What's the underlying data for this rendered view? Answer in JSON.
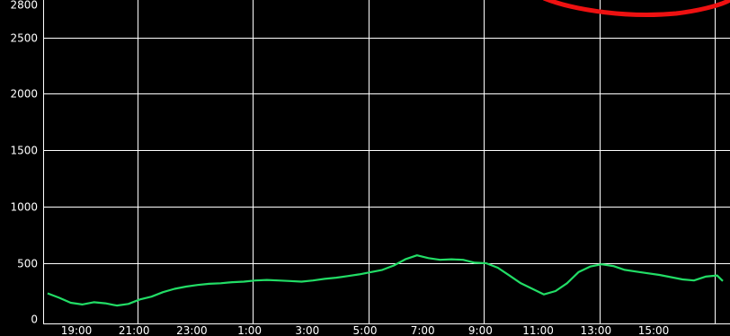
{
  "chart_data": {
    "type": "line",
    "title": "",
    "xlabel": "",
    "ylabel": "",
    "ylim": [
      0,
      2800
    ],
    "y_ticks": [
      0,
      500,
      1000,
      1500,
      2000,
      2500,
      2800
    ],
    "y_tick_labels": [
      "0",
      "500",
      "1000",
      "1500",
      "2000",
      "2500",
      "2800"
    ],
    "x_tick_labels": [
      "19:00",
      "21:00",
      "23:00",
      "1:00",
      "3:00",
      "5:00",
      "7:00",
      "9:00",
      "11:00",
      "13:00",
      "15:00"
    ],
    "x_range_hours": [
      18.0,
      41.4
    ],
    "x_ticks_hours": [
      19,
      21,
      23,
      25,
      27,
      29,
      31,
      33,
      35,
      37,
      39
    ],
    "grid": true,
    "background_color": "#000000",
    "axis_color": "#ffffff",
    "series": [
      {
        "color": "#22dd66",
        "x": [
          18.0,
          18.4,
          18.8,
          19.2,
          19.6,
          20.0,
          20.4,
          20.8,
          21.2,
          21.6,
          22.0,
          22.4,
          22.8,
          23.2,
          23.6,
          24.0,
          24.4,
          24.8,
          25.2,
          25.6,
          26.0,
          26.4,
          26.8,
          27.2,
          27.6,
          28.0,
          28.4,
          28.8,
          29.2,
          29.6,
          30.0,
          30.4,
          30.8,
          31.2,
          31.6,
          32.0,
          32.4,
          32.8,
          33.2,
          33.6,
          34.0,
          34.4,
          34.8,
          35.2,
          35.6,
          36.0,
          36.4,
          36.8,
          37.2,
          37.6,
          38.0,
          38.4,
          38.8,
          39.2,
          39.6,
          40.0,
          40.4,
          40.8,
          41.2,
          41.4
        ],
        "y": [
          230,
          190,
          145,
          130,
          150,
          140,
          120,
          135,
          175,
          200,
          240,
          270,
          290,
          305,
          315,
          320,
          330,
          335,
          345,
          350,
          345,
          340,
          335,
          345,
          360,
          370,
          385,
          400,
          420,
          440,
          480,
          535,
          570,
          545,
          530,
          535,
          530,
          505,
          500,
          460,
          390,
          320,
          270,
          220,
          250,
          320,
          420,
          470,
          490,
          475,
          440,
          425,
          410,
          395,
          375,
          355,
          345,
          380,
          390,
          340
        ]
      }
    ]
  }
}
